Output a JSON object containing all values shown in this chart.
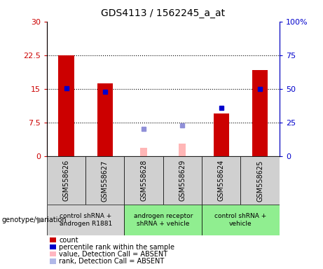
{
  "title": "GDS4113 / 1562245_a_at",
  "samples": [
    "GSM558626",
    "GSM558627",
    "GSM558628",
    "GSM558629",
    "GSM558624",
    "GSM558625"
  ],
  "count_values": [
    22.5,
    16.2,
    null,
    null,
    9.5,
    19.2
  ],
  "absent_value_values": [
    null,
    null,
    1.8,
    2.8,
    null,
    null
  ],
  "absent_rank_values": [
    null,
    null,
    6.0,
    6.8,
    null,
    null
  ],
  "percentile_right_axis": [
    50.5,
    48.0,
    null,
    null,
    36.0,
    50.0
  ],
  "ylim_left": [
    0,
    30
  ],
  "ylim_right": [
    0,
    100
  ],
  "yticks_left": [
    0,
    7.5,
    15,
    22.5,
    30
  ],
  "yticks_right": [
    0,
    25,
    50,
    75,
    100
  ],
  "ytick_labels_left": [
    "0",
    "7.5",
    "15",
    "22.5",
    "30"
  ],
  "ytick_labels_right": [
    "0",
    "25",
    "50",
    "75",
    "100%"
  ],
  "left_axis_color": "#cc0000",
  "right_axis_color": "#0000cc",
  "genotype_groups": [
    {
      "label": "control shRNA +\nandrogen R1881",
      "samples": [
        0,
        1
      ],
      "color": "#d3d3d3"
    },
    {
      "label": "androgen receptor\nshRNA + vehicle",
      "samples": [
        2,
        3
      ],
      "color": "#90ee90"
    },
    {
      "label": "control shRNA +\nvehicle",
      "samples": [
        4,
        5
      ],
      "color": "#90ee90"
    }
  ],
  "legend_items": [
    {
      "label": "count",
      "color": "#cc0000"
    },
    {
      "label": "percentile rank within the sample",
      "color": "#0000cc"
    },
    {
      "label": "value, Detection Call = ABSENT",
      "color": "#ffb6c1"
    },
    {
      "label": "rank, Detection Call = ABSENT",
      "color": "#b0b8e8"
    }
  ],
  "bar_width": 0.4,
  "absent_bar_width": 0.18,
  "red_bar_color": "#cc0000",
  "pink_bar_color": "#ffb6b6",
  "blue_marker_color": "#0000cc",
  "light_blue_color": "#9090d8",
  "plot_bg": "#ffffff",
  "sample_box_color": "#d0d0d0",
  "dotted_line_color": "#000000"
}
